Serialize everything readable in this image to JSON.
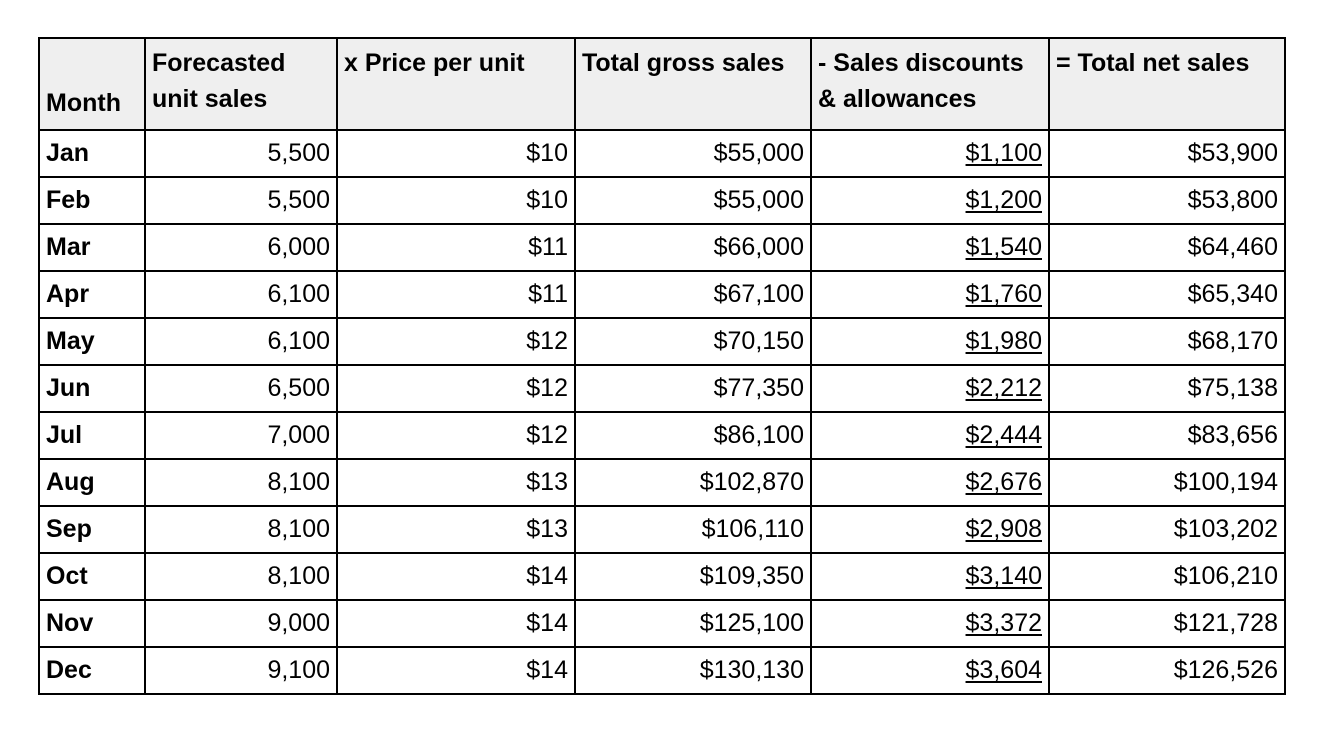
{
  "table": {
    "headers": [
      "Month",
      "Forecasted unit sales",
      "x Price per unit",
      "Total gross sales",
      "- Sales discounts & allowances",
      "= Total net sales"
    ],
    "rows": [
      [
        "Jan",
        "5,500",
        "$10",
        "$55,000",
        "$1,100",
        "$53,900"
      ],
      [
        "Feb",
        "5,500",
        "$10",
        "$55,000",
        "$1,200",
        "$53,800"
      ],
      [
        "Mar",
        "6,000",
        "$11",
        "$66,000",
        "$1,540",
        "$64,460"
      ],
      [
        "Apr",
        "6,100",
        "$11",
        "$67,100",
        "$1,760",
        "$65,340"
      ],
      [
        "May",
        "6,100",
        "$12",
        "$70,150",
        "$1,980",
        "$68,170"
      ],
      [
        "Jun",
        "6,500",
        "$12",
        "$77,350",
        "$2,212",
        "$75,138"
      ],
      [
        "Jul",
        "7,000",
        "$12",
        "$86,100",
        "$2,444",
        "$83,656"
      ],
      [
        "Aug",
        "8,100",
        "$13",
        "$102,870",
        "$2,676",
        "$100,194"
      ],
      [
        "Sep",
        "8,100",
        "$13",
        "$106,110",
        "$2,908",
        "$103,202"
      ],
      [
        "Oct",
        "8,100",
        "$14",
        "$109,350",
        "$3,140",
        "$106,210"
      ],
      [
        "Nov",
        "9,000",
        "$14",
        "$125,100",
        "$3,372",
        "$121,728"
      ],
      [
        "Dec",
        "9,100",
        "$14",
        "$130,130",
        "$3,604",
        "$126,526"
      ]
    ]
  }
}
